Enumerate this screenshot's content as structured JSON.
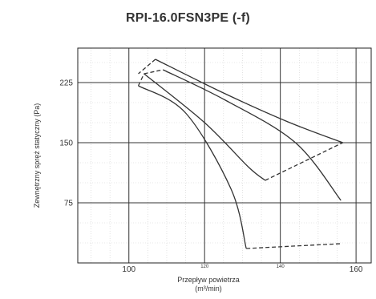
{
  "chart_data": {
    "type": "line",
    "title": "RPI-16.0FSN3PE (-f)",
    "xlabel": "Przepływ powietrza",
    "xunit": "(m³/min)",
    "ylabel": "Zewnętrzny spręż statyczny (Pa)",
    "xlim": [
      86.5,
      164
    ],
    "ylim": [
      0,
      268
    ],
    "major_x_ticks": [
      {
        "value": 100,
        "label": "100",
        "size": "normal"
      },
      {
        "value": 120,
        "label": "120",
        "size": "small"
      },
      {
        "value": 140,
        "label": "140",
        "size": "small"
      },
      {
        "value": 160,
        "label": "160",
        "size": "normal"
      }
    ],
    "y_ticks": [
      {
        "value": 75,
        "label": "75"
      },
      {
        "value": 150,
        "label": "150"
      },
      {
        "value": 225,
        "label": "225"
      }
    ],
    "grid": "major-solid-minor-dotted",
    "series": [
      {
        "style": "solid",
        "x": [
          107,
          125,
          142,
          156.5
        ],
        "y": [
          254,
          212,
          176,
          150
        ]
      },
      {
        "style": "solid",
        "x": [
          104,
          120,
          131.5,
          136
        ],
        "y": [
          236,
          175,
          120,
          103
        ]
      },
      {
        "style": "solid",
        "x": [
          109,
          125.5,
          144,
          156
        ],
        "y": [
          241,
          203,
          150,
          78
        ]
      },
      {
        "style": "solid",
        "x": [
          102.5,
          115,
          127,
          131
        ],
        "y": [
          221,
          187,
          92,
          18
        ]
      },
      {
        "style": "dashed",
        "x": [
          107,
          102.5
        ],
        "y": [
          254,
          236
        ]
      },
      {
        "style": "dashed",
        "x": [
          104,
          109
        ],
        "y": [
          236,
          241
        ]
      },
      {
        "style": "dashed",
        "x": [
          102.5,
          104
        ],
        "y": [
          221,
          236
        ]
      },
      {
        "style": "dashed",
        "x": [
          136,
          156.5
        ],
        "y": [
          103,
          150
        ]
      },
      {
        "style": "dashed",
        "x": [
          131,
          156
        ],
        "y": [
          18,
          24
        ]
      }
    ]
  }
}
